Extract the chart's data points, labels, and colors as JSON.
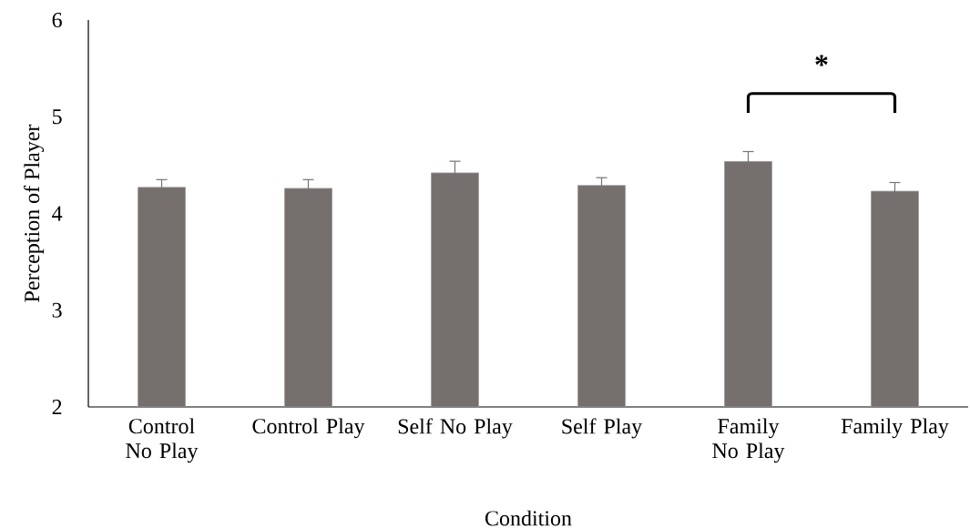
{
  "chart_data": {
    "type": "bar",
    "xlabel": "Condition",
    "ylabel": "Perception of Player",
    "categories": [
      "Control No Play",
      "Control Play",
      "Self No Play",
      "Self Play",
      "Family No Play",
      "Family Play"
    ],
    "values": [
      4.27,
      4.26,
      4.42,
      4.29,
      4.54,
      4.23
    ],
    "errors": [
      0.08,
      0.09,
      0.12,
      0.08,
      0.1,
      0.09
    ],
    "color": "#756f6e",
    "ylim": [
      2,
      6
    ],
    "yticks": [
      2,
      3,
      4,
      5,
      6
    ],
    "grid": false,
    "annotations": [
      "*"
    ]
  }
}
